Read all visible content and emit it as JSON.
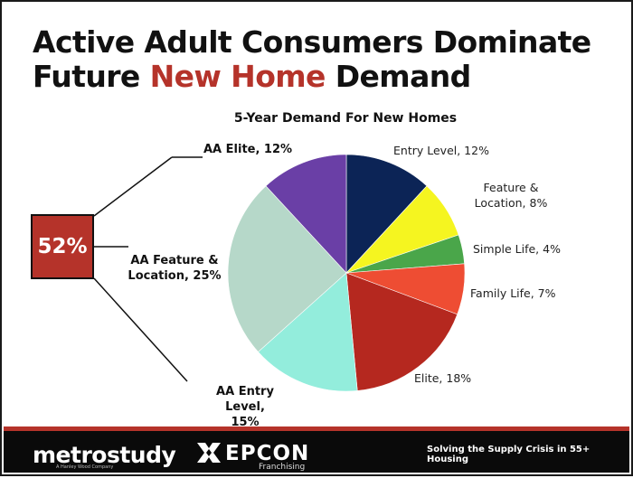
{
  "title": {
    "line1": "Active Adult Consumers Dominate",
    "line2_pre": "Future ",
    "line2_accent": "New Home",
    "line2_post": " Demand"
  },
  "callout": {
    "value": "52%"
  },
  "colors": {
    "accent": "#b5332a"
  },
  "chart_data": {
    "type": "pie",
    "title": "5-Year Demand For New Homes",
    "slices": [
      {
        "label": "Entry Level",
        "value": 12,
        "display": "Entry Level, 12%",
        "color": "#0c2456"
      },
      {
        "label": "Feature & Location",
        "value": 8,
        "display": "Feature & Location, 8%",
        "color": "#f5f520"
      },
      {
        "label": "Simple Life",
        "value": 4,
        "display": "Simple Life, 4%",
        "color": "#4aa64a"
      },
      {
        "label": "Family Life",
        "value": 7,
        "display": "Family Life, 7%",
        "color": "#ee4d33"
      },
      {
        "label": "Elite",
        "value": 18,
        "display": "Elite, 18%",
        "color": "#b5281f"
      },
      {
        "label": "AA Entry Level",
        "value": 15,
        "display": "AA Entry Level, 15%",
        "color": "#93eddc"
      },
      {
        "label": "AA Feature & Location",
        "value": 25,
        "display": "AA Feature & Location, 25%",
        "color": "#b6d8c9"
      },
      {
        "label": "AA Elite",
        "value": 12,
        "display": "AA Elite, 12%",
        "color": "#6a3fa6"
      }
    ]
  },
  "labels": {
    "entry_level": "Entry Level, 12%",
    "feature_1": "Feature &",
    "feature_2": "Location, 8%",
    "simple_life": "Simple Life, 4%",
    "family_life": "Family Life, 7%",
    "elite": "Elite, 18%",
    "aa_entry_1": "AA Entry Level,",
    "aa_entry_2": "15%",
    "aa_feature_1": "AA Feature &",
    "aa_feature_2": "Location, 25%",
    "aa_elite": "AA Elite, 12%"
  },
  "footer": {
    "metro_logo": "metrostudy",
    "metro_sub": "A Hanley Wood Company",
    "epcon_logo": "EPCON",
    "epcon_sub": "Franchising",
    "tagline": "Solving the Supply Crisis in 55+ Housing"
  }
}
